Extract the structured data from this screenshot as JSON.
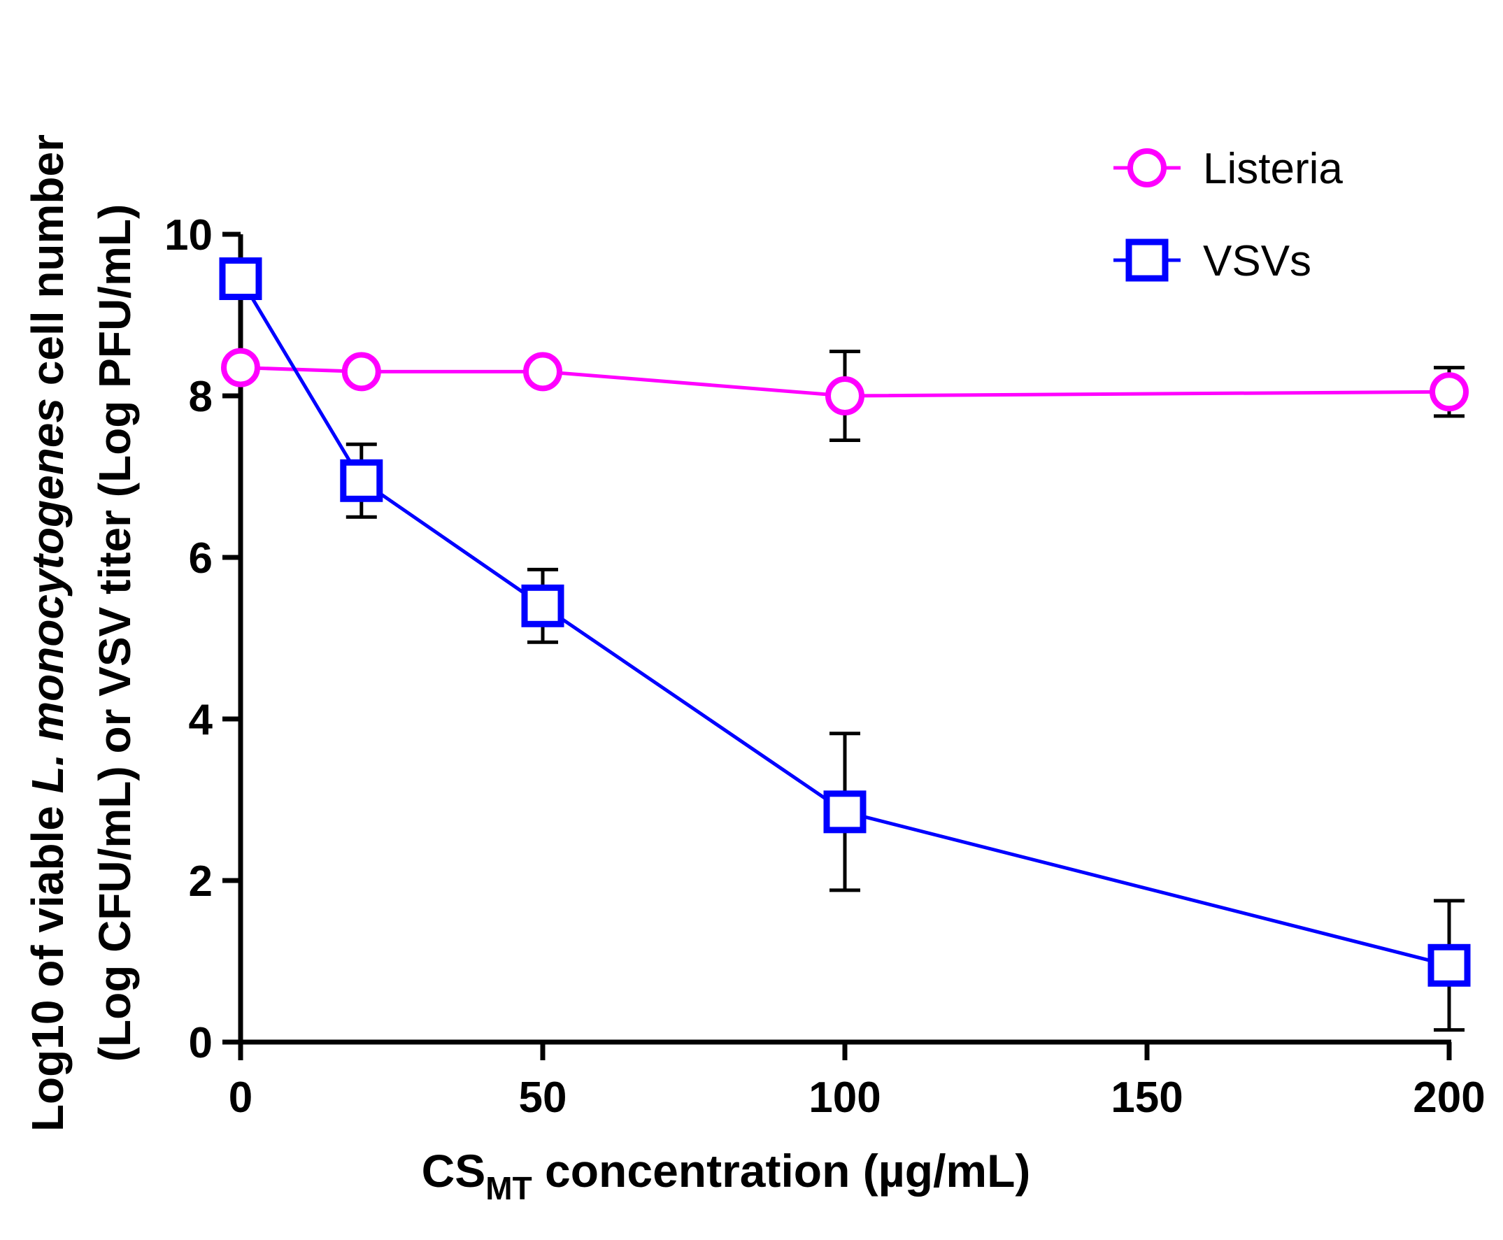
{
  "chart_data": {
    "type": "line",
    "xlabel_main": "CS",
    "xlabel_sub": "MT",
    "xlabel_rest": " concentration (µg/mL)",
    "ylabel_line1_pre": "Log10 of viable ",
    "ylabel_line1_italic": "L. monocytogenes",
    "ylabel_line1_post": " cell number",
    "ylabel_line2": "(Log CFU/mL) or VSV titer (Log PFU/mL)",
    "xlim": [
      0,
      200
    ],
    "ylim": [
      0,
      10
    ],
    "xticks": [
      0,
      50,
      100,
      150,
      200
    ],
    "yticks": [
      0,
      2,
      4,
      6,
      8,
      10
    ],
    "xtick_labels": [
      "0",
      "50",
      "100",
      "150",
      "200"
    ],
    "ytick_labels": [
      "0",
      "2",
      "4",
      "6",
      "8",
      "10"
    ],
    "grid": false,
    "legend_position": "top-right",
    "series": [
      {
        "name": "Listeria",
        "color": "#ff00ff",
        "marker": "circle",
        "x": [
          0,
          20,
          50,
          100,
          200
        ],
        "y": [
          8.35,
          8.3,
          8.3,
          8.0,
          8.05
        ],
        "yerr": [
          null,
          null,
          null,
          0.55,
          0.3
        ]
      },
      {
        "name": "VSVs",
        "color": "#0000ff",
        "marker": "square",
        "x": [
          0,
          20,
          50,
          100,
          200
        ],
        "y": [
          9.45,
          6.95,
          5.4,
          2.85,
          0.95
        ],
        "yerr": [
          null,
          0.45,
          0.45,
          0.97,
          0.8
        ]
      }
    ]
  }
}
